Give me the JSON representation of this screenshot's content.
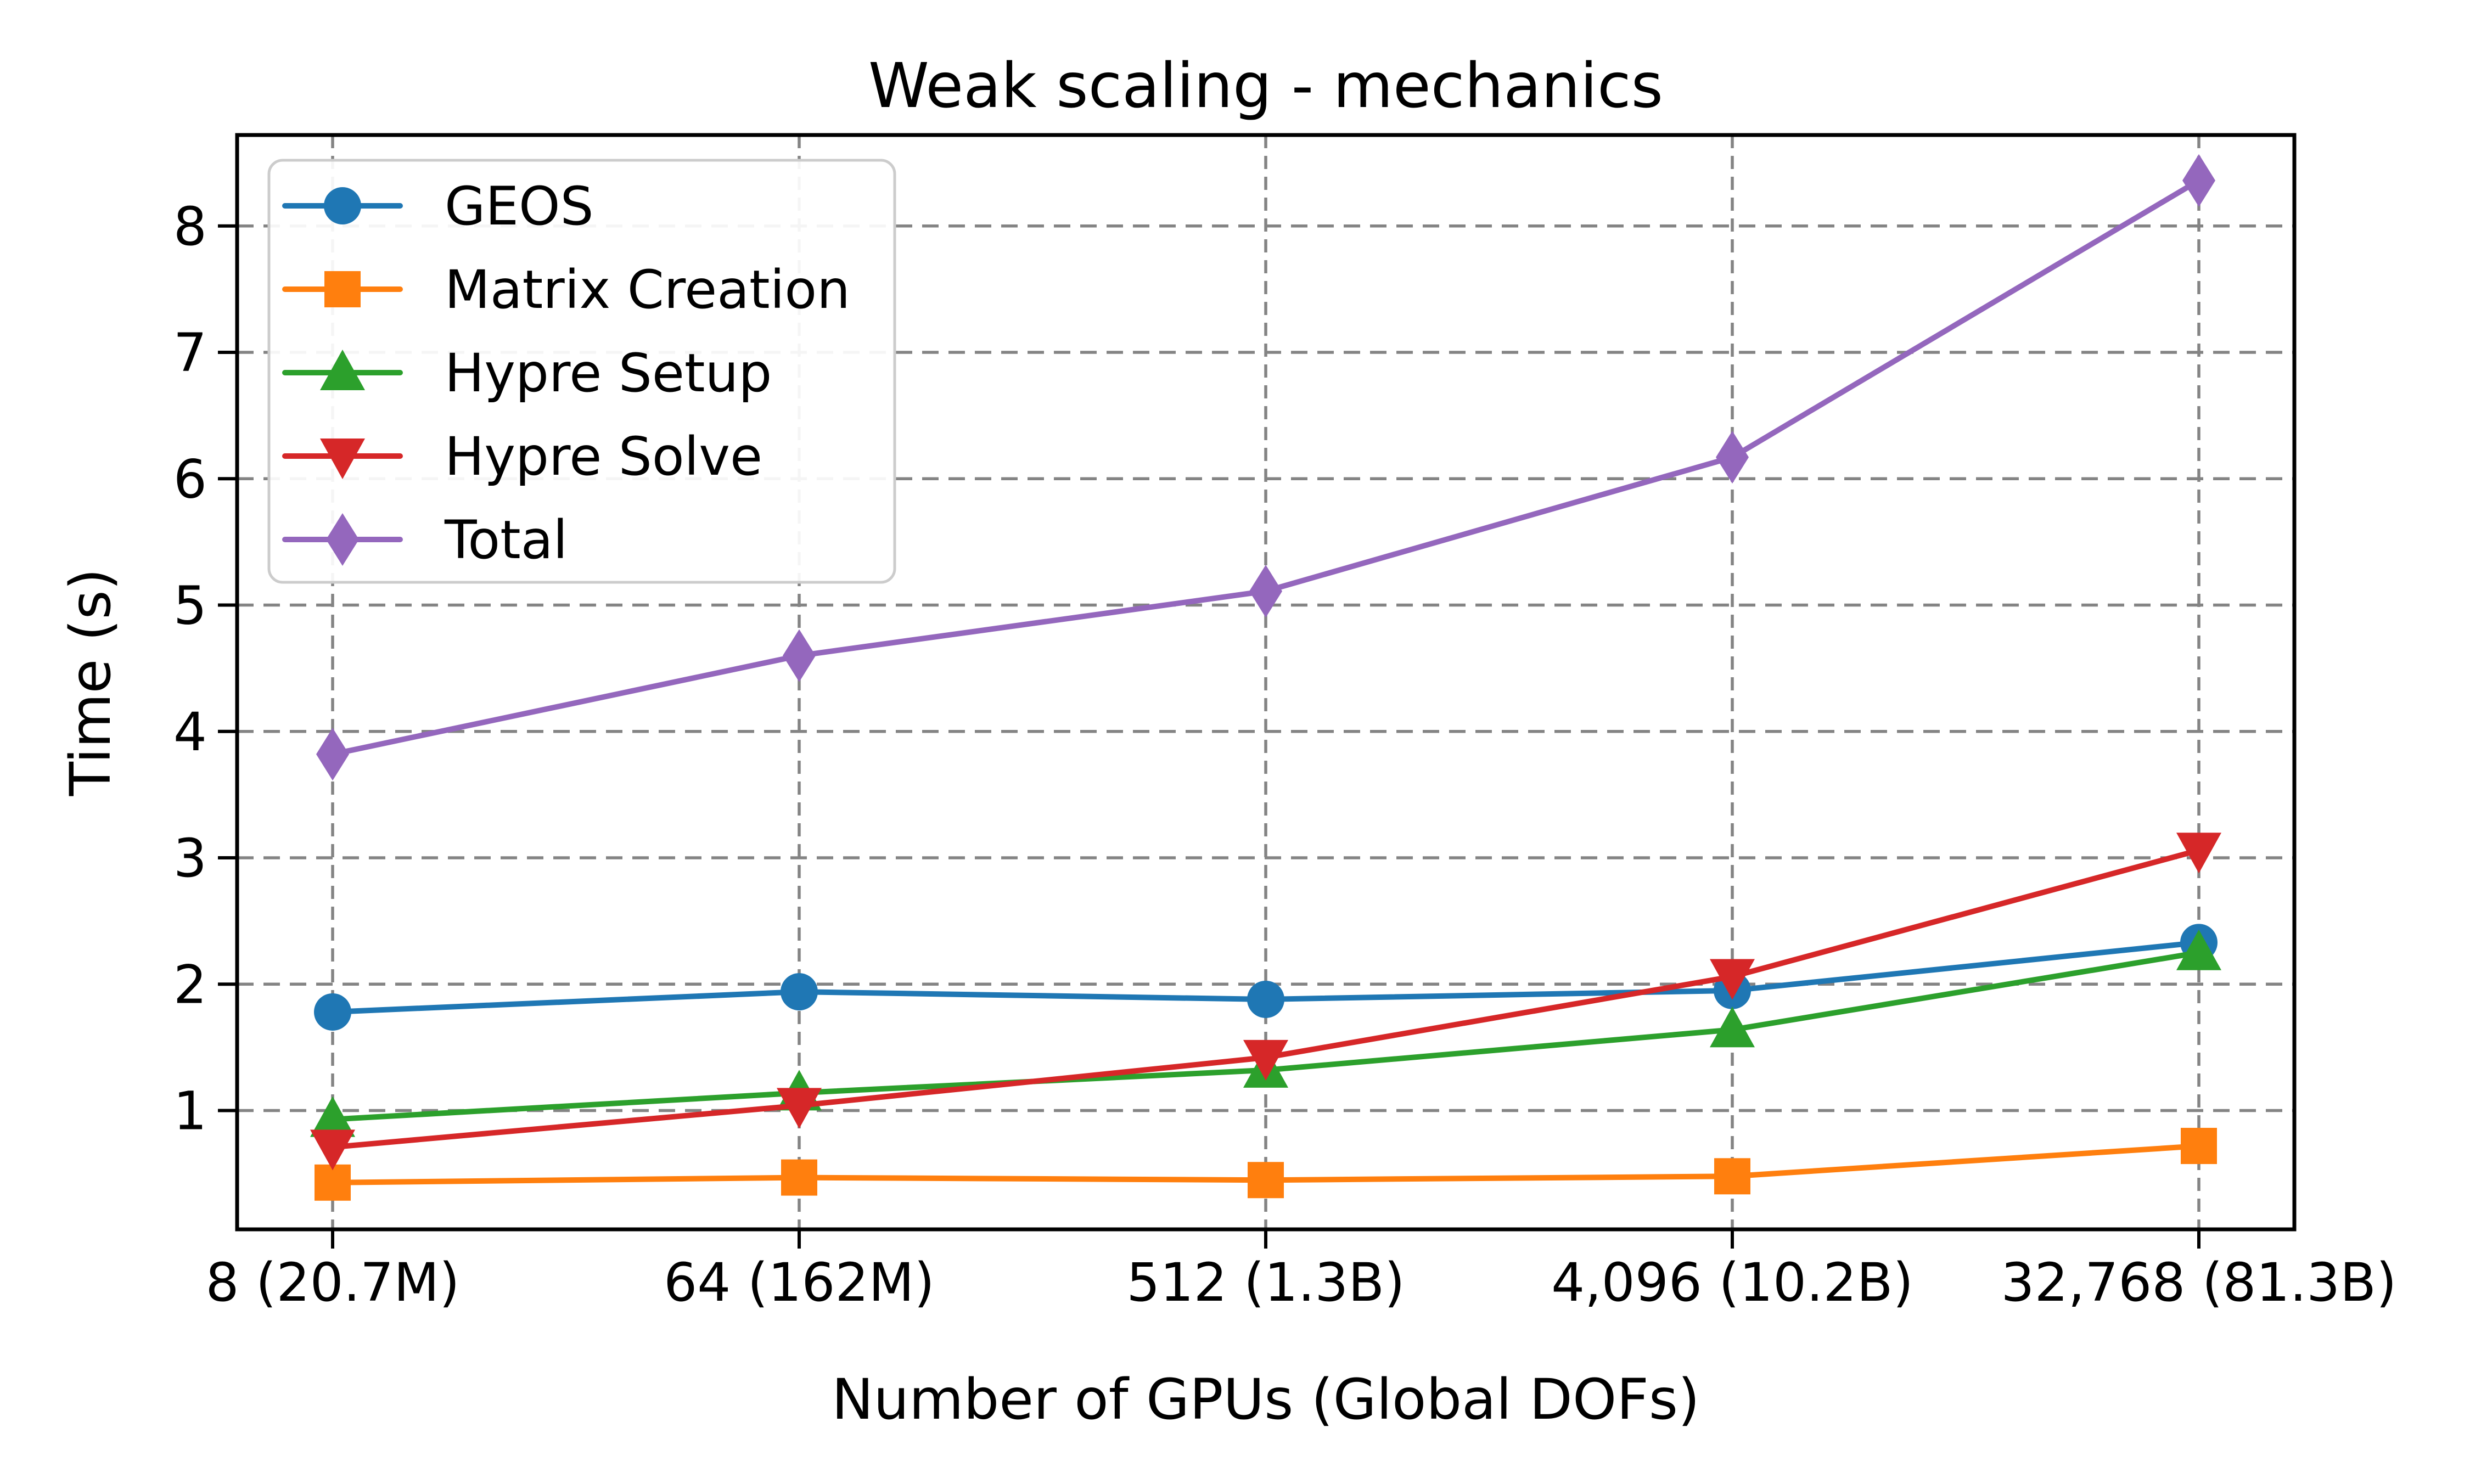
{
  "chart_data": {
    "type": "line",
    "title": "Weak scaling - mechanics",
    "xlabel": "Number of GPUs (Global DOFs)",
    "ylabel": "Time (s)",
    "categories": [
      "8 (20.7M)",
      "64 (162M)",
      "512 (1.3B)",
      "4,096 (10.2B)",
      "32,768 (81.3B)"
    ],
    "yticks": [
      1,
      2,
      3,
      4,
      5,
      6,
      7,
      8
    ],
    "ylim": [
      0.06,
      8.72
    ],
    "grid": true,
    "grid_style": "dashed",
    "grid_color": "#848484",
    "legend_position": "upper-left",
    "background_color": "#ffffff",
    "spine_color": "#000000",
    "series": [
      {
        "name": "GEOS",
        "color": "#1f77b4",
        "marker": "circle",
        "values": [
          1.78,
          1.94,
          1.88,
          1.95,
          2.33
        ]
      },
      {
        "name": "Matrix Creation",
        "color": "#ff7f0e",
        "marker": "square",
        "values": [
          0.43,
          0.47,
          0.45,
          0.48,
          0.72
        ]
      },
      {
        "name": "Hypre Setup",
        "color": "#2ca02c",
        "marker": "triangle-up",
        "values": [
          0.93,
          1.14,
          1.32,
          1.64,
          2.25
        ]
      },
      {
        "name": "Hypre Solve",
        "color": "#d62728",
        "marker": "triangle-down",
        "values": [
          0.71,
          1.04,
          1.42,
          2.06,
          3.06
        ]
      },
      {
        "name": "Total",
        "color": "#9467bd",
        "marker": "diamond",
        "values": [
          3.82,
          4.6,
          5.11,
          6.17,
          8.36
        ]
      }
    ]
  }
}
